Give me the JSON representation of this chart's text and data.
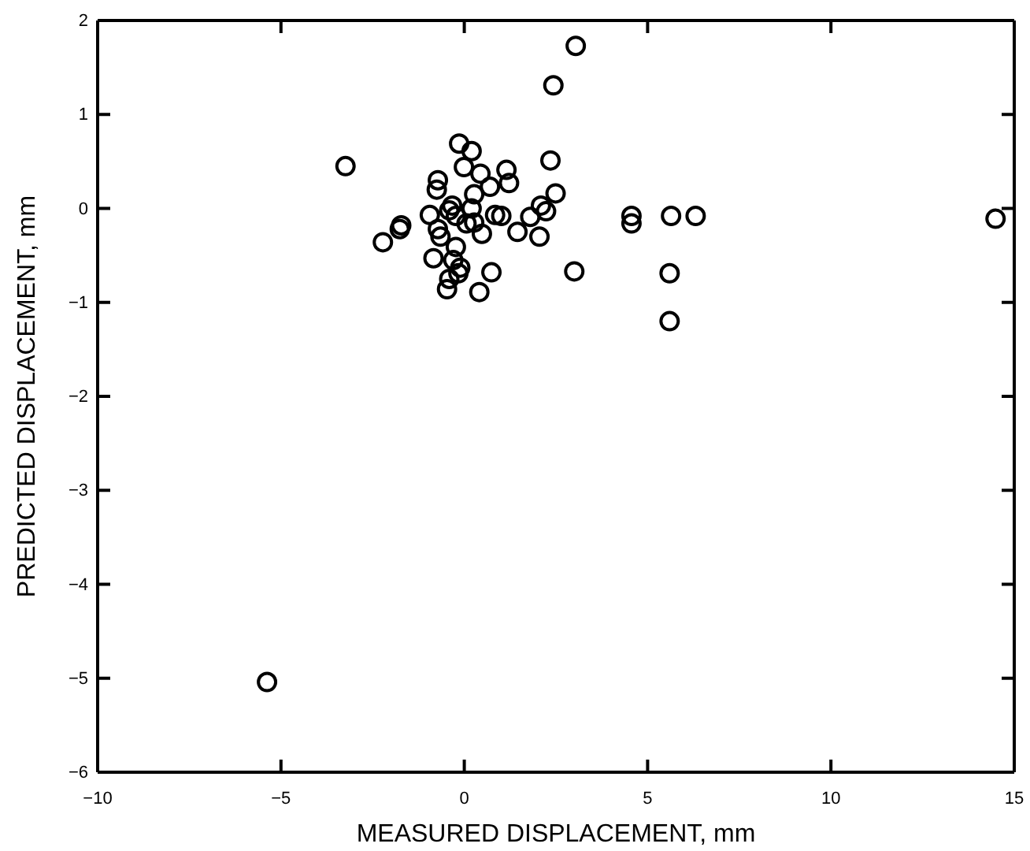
{
  "chart_data": {
    "type": "scatter",
    "xlabel": "MEASURED DISPLACEMENT, mm",
    "ylabel": "PREDICTED DISPLACEMENT, mm",
    "marker": "circle",
    "grid": false,
    "xlim": [
      -10,
      15
    ],
    "ylim": [
      -6,
      2
    ],
    "xticks": [
      -10,
      -5,
      0,
      5,
      10,
      15
    ],
    "yticks": [
      -6,
      -5,
      -4,
      -3,
      -2,
      -1,
      0,
      1,
      2
    ],
    "series": [
      {
        "color": "#000000",
        "x": [
          3.04,
          2.43,
          -3.24,
          -0.14,
          0.2,
          2.35,
          -0.01,
          0.44,
          1.15,
          1.22,
          -0.72,
          0.7,
          2.49,
          0.27,
          -0.75,
          -0.94,
          -0.41,
          -0.23,
          0.2,
          0.84,
          1.01,
          1.8,
          2.09,
          2.23,
          -1.72,
          -1.76,
          -2.22,
          -0.72,
          0.27,
          0.48,
          1.45,
          2.05,
          -0.65,
          -0.23,
          -0.84,
          -0.3,
          -0.11,
          -0.16,
          -0.41,
          -0.47,
          0.74,
          0.41,
          3.0,
          4.56,
          4.56,
          0.06,
          -0.33,
          5.64,
          6.31,
          5.6,
          5.6,
          14.49,
          -5.38
        ],
        "values": [
          1.73,
          1.31,
          0.45,
          0.69,
          0.61,
          0.51,
          0.44,
          0.37,
          0.41,
          0.27,
          0.3,
          0.23,
          0.16,
          0.15,
          0.2,
          -0.07,
          -0.02,
          -0.08,
          0.0,
          -0.07,
          -0.08,
          -0.09,
          0.03,
          -0.03,
          -0.18,
          -0.22,
          -0.36,
          -0.22,
          -0.15,
          -0.27,
          -0.25,
          -0.3,
          -0.3,
          -0.41,
          -0.53,
          -0.55,
          -0.63,
          -0.69,
          -0.75,
          -0.86,
          -0.68,
          -0.89,
          -0.67,
          -0.08,
          -0.16,
          -0.16,
          0.03,
          -0.08,
          -0.08,
          -0.69,
          -1.2,
          -0.11,
          -5.04
        ]
      }
    ]
  }
}
